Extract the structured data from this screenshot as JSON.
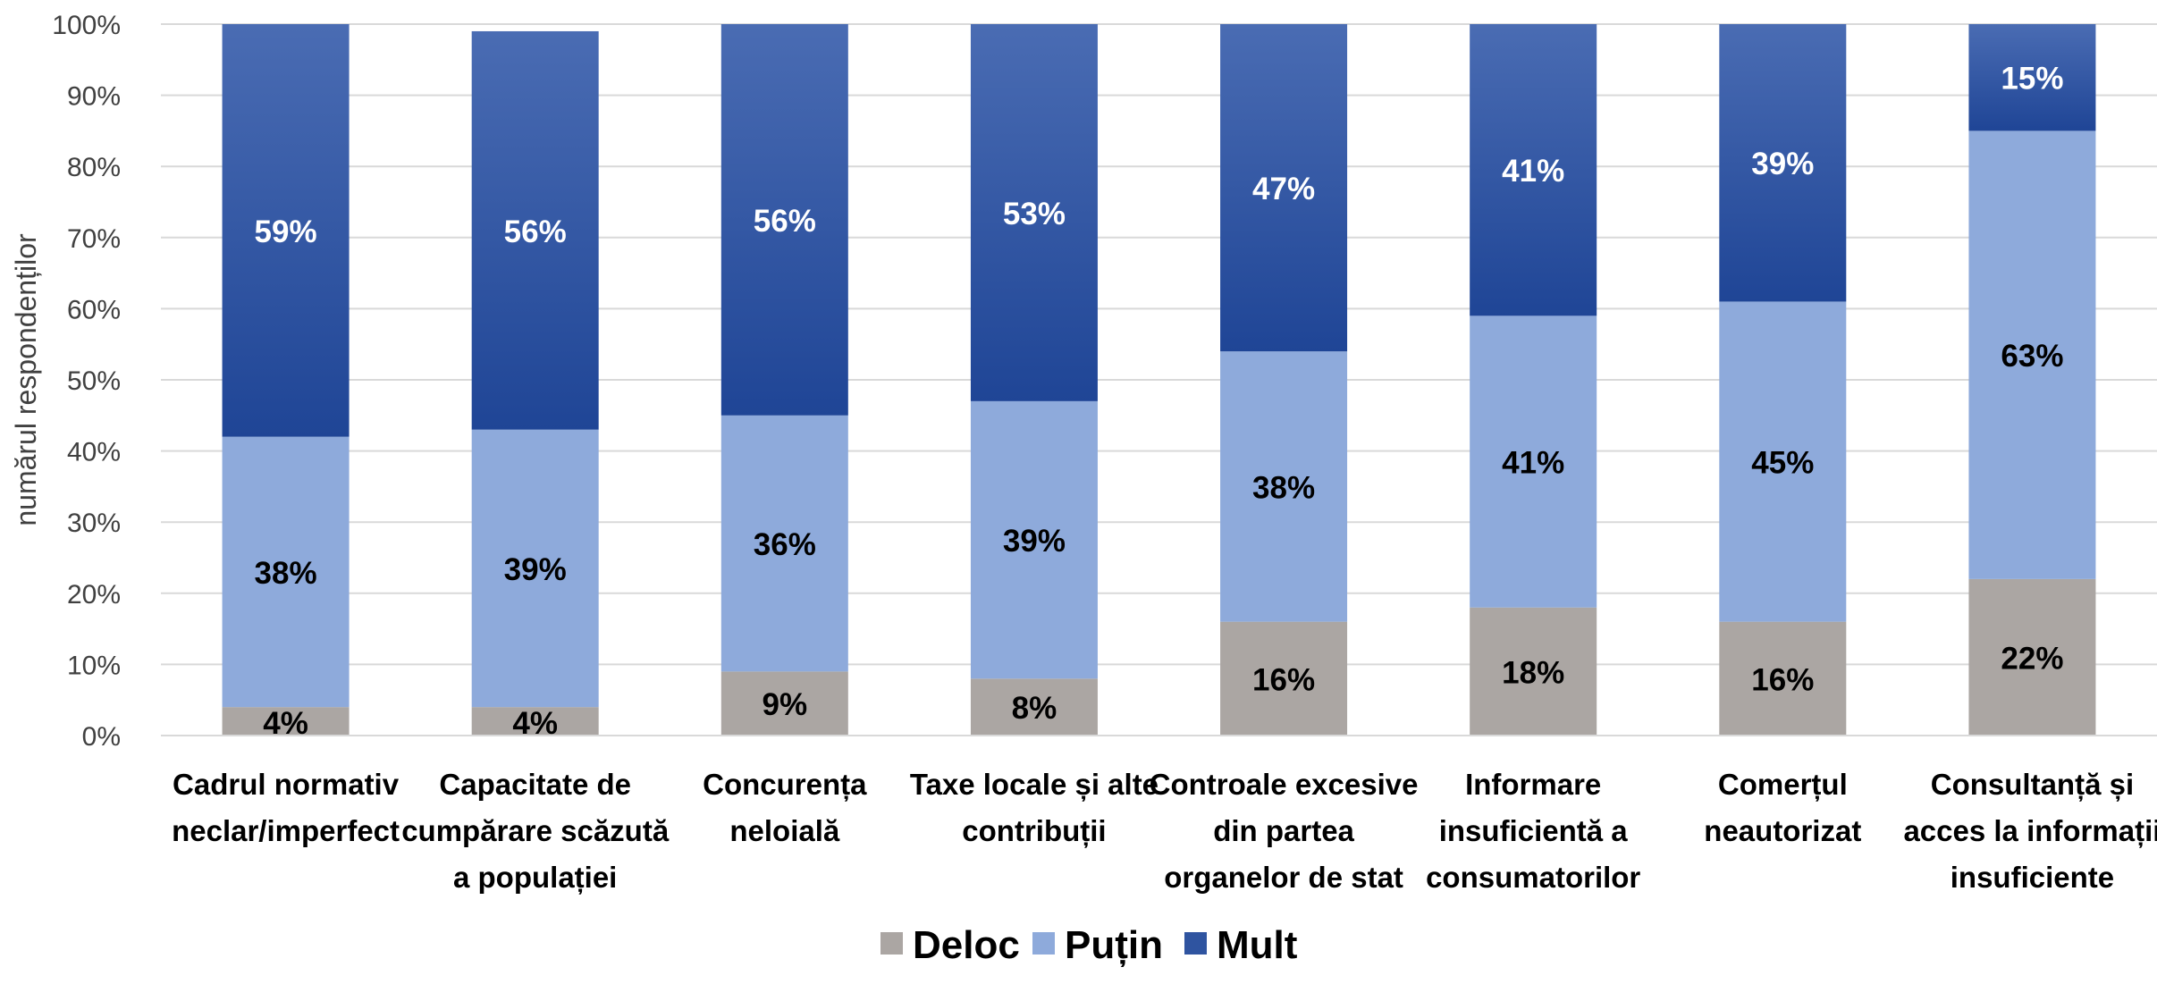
{
  "chart_data": {
    "type": "bar",
    "stacked": true,
    "ylabel": "numărul respondenților",
    "ylim": [
      0,
      100
    ],
    "yticks": [
      "0%",
      "10%",
      "20%",
      "30%",
      "40%",
      "50%",
      "60%",
      "70%",
      "80%",
      "90%",
      "100%"
    ],
    "grid": true,
    "legend_position": "bottom",
    "categories": [
      [
        "Cadrul normativ",
        "neclar/imperfect"
      ],
      [
        "Capacitate de",
        "cumpărare scăzută",
        "a populației"
      ],
      [
        "Concurența",
        "neloială"
      ],
      [
        "Taxe locale și alte",
        "contribuții"
      ],
      [
        "Controale excesive",
        "din partea",
        "organelor de stat"
      ],
      [
        "Informare",
        "insuficientă a",
        "consumatorilor"
      ],
      [
        "Comerțul",
        "neautorizat"
      ],
      [
        "Consultanță și",
        "acces la informații",
        "insuficiente"
      ]
    ],
    "series": [
      {
        "name": "Deloc",
        "color": "#aba6a3",
        "label_color": "#000000",
        "values": [
          4,
          4,
          9,
          8,
          16,
          18,
          16,
          22
        ],
        "labels": [
          "4%",
          "4%",
          "9%",
          "8%",
          "16%",
          "18%",
          "16%",
          "22%"
        ]
      },
      {
        "name": "Puțin",
        "color": "#8eaadb",
        "label_color": "#000000",
        "values": [
          38,
          39,
          36,
          39,
          38,
          41,
          45,
          63
        ],
        "labels": [
          "38%",
          "39%",
          "36%",
          "39%",
          "38%",
          "41%",
          "45%",
          "63%"
        ]
      },
      {
        "name": "Mult",
        "color": "#2f54a0",
        "label_color": "#ffffff",
        "values": [
          59,
          56,
          56,
          53,
          47,
          41,
          39,
          15
        ],
        "labels": [
          "59%",
          "56%",
          "56%",
          "53%",
          "47%",
          "41%",
          "39%",
          "15%"
        ]
      }
    ]
  }
}
